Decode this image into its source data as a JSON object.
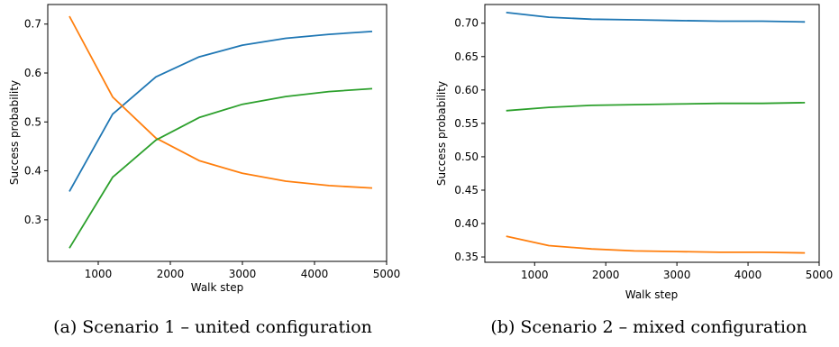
{
  "chart_data": [
    {
      "type": "line",
      "caption": "(a) Scenario 1 – united configuration",
      "xlabel": "Walk step",
      "ylabel": "Success probability",
      "xlim": [
        300,
        5000
      ],
      "ylim": [
        0.215,
        0.74
      ],
      "xticks": [
        1000,
        2000,
        3000,
        4000,
        5000
      ],
      "xtick_labels": [
        "1000",
        "2000",
        "3000",
        "4000",
        "5000"
      ],
      "yticks": [
        0.3,
        0.4,
        0.5,
        0.6,
        0.7
      ],
      "ytick_labels": [
        "0.3",
        "0.4",
        "0.5",
        "0.6",
        "0.7"
      ],
      "x": [
        600,
        1200,
        1800,
        2400,
        3000,
        3600,
        4200,
        4800
      ],
      "series": [
        {
          "color": "#1f77b4",
          "values": [
            0.358,
            0.516,
            0.592,
            0.633,
            0.657,
            0.671,
            0.679,
            0.685
          ]
        },
        {
          "color": "#ff7f0e",
          "values": [
            0.716,
            0.551,
            0.467,
            0.421,
            0.395,
            0.379,
            0.37,
            0.365
          ]
        },
        {
          "color": "#2ca02c",
          "values": [
            0.242,
            0.387,
            0.463,
            0.509,
            0.536,
            0.552,
            0.562,
            0.568
          ]
        }
      ],
      "grid": false
    },
    {
      "type": "line",
      "caption": "(b) Scenario 2 – mixed configuration",
      "xlabel": "Walk step",
      "ylabel": "Success probability",
      "xlim": [
        300,
        5000
      ],
      "ylim": [
        0.342,
        0.728
      ],
      "xticks": [
        1000,
        2000,
        3000,
        4000,
        5000
      ],
      "xtick_labels": [
        "1000",
        "2000",
        "3000",
        "4000",
        "5000"
      ],
      "yticks": [
        0.35,
        0.4,
        0.45,
        0.5,
        0.55,
        0.6,
        0.65,
        0.7
      ],
      "ytick_labels": [
        "0.35",
        "0.40",
        "0.45",
        "0.50",
        "0.55",
        "0.60",
        "0.65",
        "0.70"
      ],
      "x": [
        600,
        1200,
        1800,
        2400,
        3000,
        3600,
        4200,
        4800
      ],
      "series": [
        {
          "color": "#1f77b4",
          "values": [
            0.716,
            0.709,
            0.706,
            0.705,
            0.704,
            0.703,
            0.703,
            0.702
          ]
        },
        {
          "color": "#ff7f0e",
          "values": [
            0.381,
            0.367,
            0.362,
            0.359,
            0.358,
            0.357,
            0.357,
            0.356
          ]
        },
        {
          "color": "#2ca02c",
          "values": [
            0.569,
            0.574,
            0.577,
            0.578,
            0.579,
            0.58,
            0.58,
            0.581
          ]
        }
      ],
      "grid": false
    }
  ]
}
